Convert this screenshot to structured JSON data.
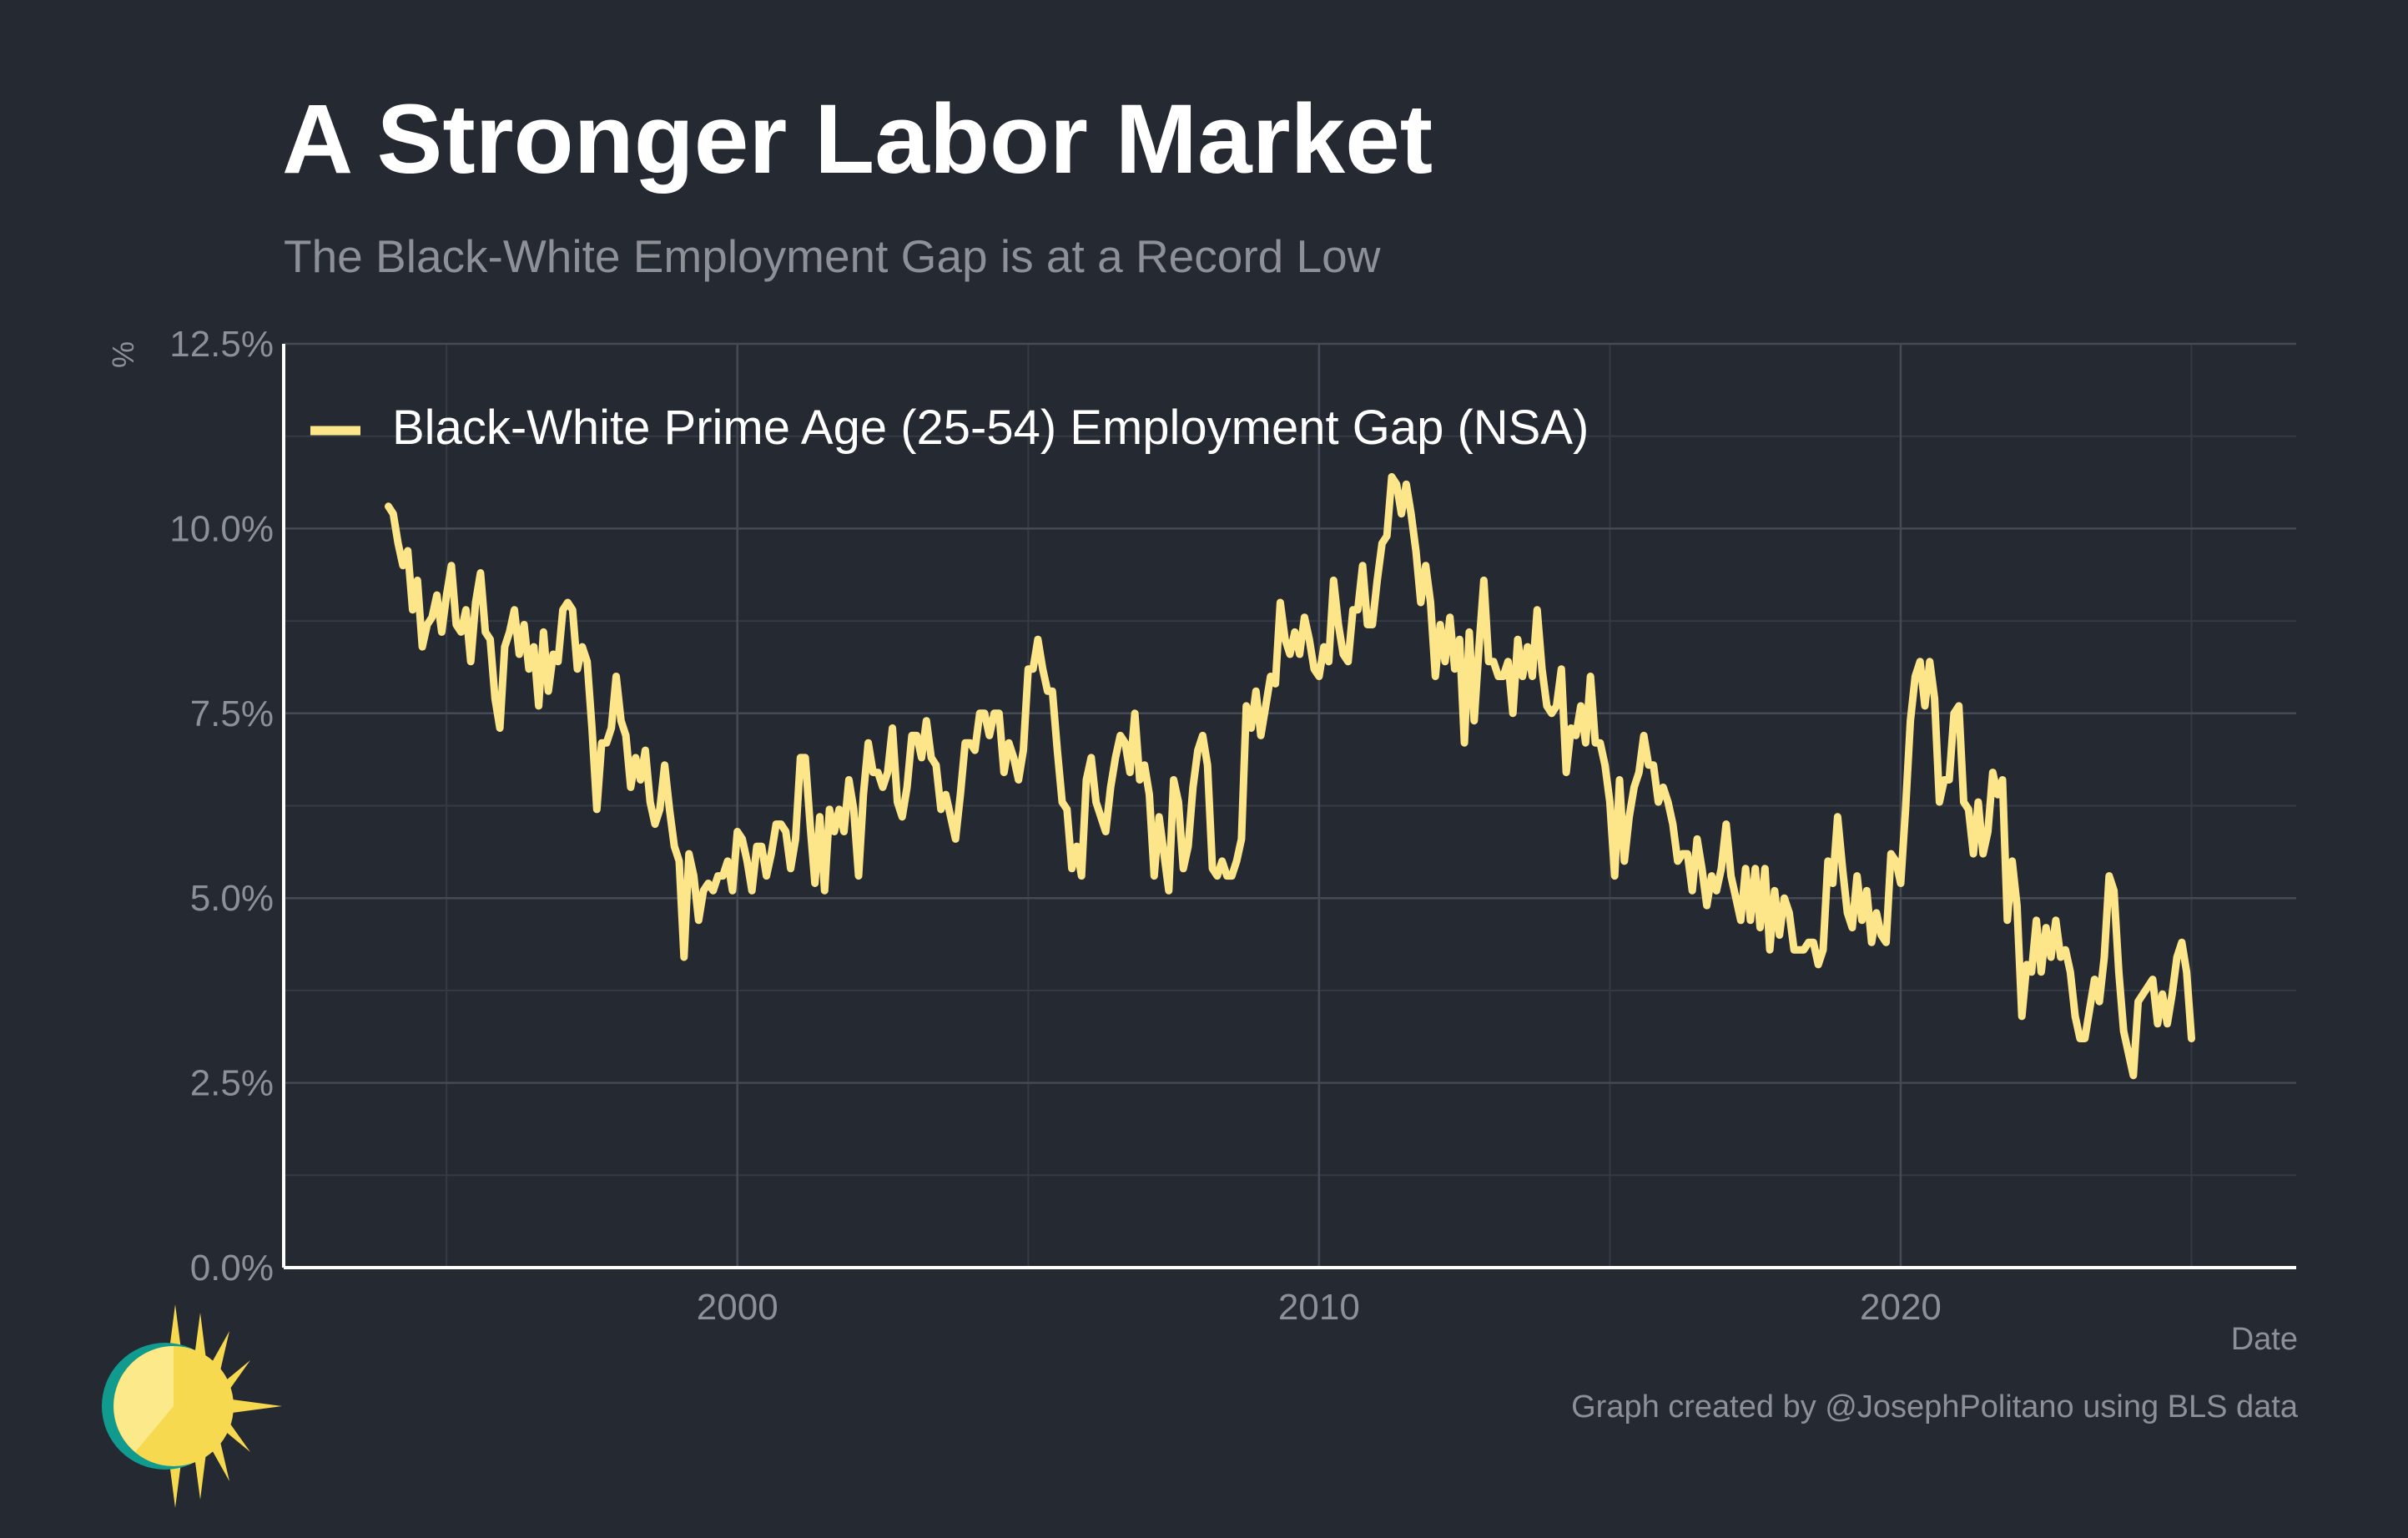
{
  "chart_data": {
    "type": "line",
    "title": "A Stronger Labor Market",
    "subtitle": "The Black-White Employment Gap is at a Record Low",
    "xlabel": "Date",
    "ylabel": "%",
    "caption": "Graph created by @JosephPolitano using BLS data",
    "legend_position": "top-left",
    "grid": true,
    "xlim": [
      1992.2,
      2026.8
    ],
    "ylim": [
      0,
      12.5
    ],
    "x_ticks": [
      2000,
      2010,
      2020
    ],
    "y_ticks": [
      0,
      2.5,
      5,
      7.5,
      10,
      12.5
    ],
    "y_tick_labels": [
      "0.0%",
      "2.5%",
      "5.0%",
      "7.5%",
      "10.0%",
      "12.5%"
    ],
    "series": [
      {
        "name": "Black-White Prime Age (25-54) Employment Gap (NSA)",
        "color": "#fde68a",
        "x_start": 1994.0,
        "x_step_months": 1,
        "values": [
          10.3,
          10.2,
          9.8,
          9.5,
          9.7,
          8.9,
          9.3,
          8.4,
          8.7,
          8.8,
          9.1,
          8.6,
          9.1,
          9.5,
          8.7,
          8.6,
          8.9,
          8.2,
          9.0,
          9.4,
          8.6,
          8.5,
          7.7,
          7.3,
          8.4,
          8.6,
          8.9,
          8.3,
          8.7,
          8.1,
          8.4,
          7.6,
          8.6,
          7.8,
          8.3,
          8.2,
          8.9,
          9.0,
          8.9,
          8.1,
          8.4,
          8.2,
          7.3,
          6.2,
          7.1,
          7.1,
          7.3,
          8.0,
          7.4,
          7.2,
          6.5,
          6.9,
          6.6,
          7.0,
          6.3,
          6.0,
          6.2,
          6.8,
          6.2,
          5.7,
          5.5,
          4.2,
          5.6,
          5.3,
          4.7,
          5.1,
          5.2,
          5.1,
          5.3,
          5.3,
          5.5,
          5.1,
          5.9,
          5.8,
          5.5,
          5.1,
          5.7,
          5.7,
          5.3,
          5.6,
          6.0,
          6.0,
          5.9,
          5.4,
          5.8,
          6.9,
          6.9,
          6.0,
          5.2,
          6.1,
          5.1,
          6.2,
          5.9,
          6.2,
          5.9,
          6.6,
          6.2,
          5.3,
          6.4,
          7.1,
          6.7,
          6.7,
          6.5,
          6.7,
          7.3,
          6.3,
          6.1,
          6.5,
          7.2,
          7.2,
          6.9,
          7.4,
          6.9,
          6.8,
          6.2,
          6.4,
          6.1,
          5.8,
          6.4,
          7.1,
          7.1,
          7.0,
          7.5,
          7.5,
          7.2,
          7.5,
          7.5,
          6.7,
          7.1,
          6.9,
          6.6,
          7.0,
          8.1,
          8.1,
          8.5,
          8.1,
          7.8,
          7.8,
          7.0,
          6.3,
          6.2,
          5.4,
          5.7,
          5.3,
          6.6,
          6.9,
          6.3,
          6.1,
          5.9,
          6.5,
          6.9,
          7.2,
          7.1,
          6.7,
          7.5,
          6.6,
          6.8,
          6.4,
          5.3,
          6.1,
          5.6,
          5.1,
          6.6,
          6.3,
          5.4,
          5.7,
          6.5,
          7.0,
          7.2,
          6.8,
          5.4,
          5.3,
          5.5,
          5.3,
          5.3,
          5.5,
          5.8,
          7.6,
          7.3,
          7.8,
          7.2,
          7.6,
          8.0,
          7.9,
          9.0,
          8.5,
          8.3,
          8.6,
          8.3,
          8.8,
          8.5,
          8.1,
          8.0,
          8.4,
          8.2,
          9.3,
          8.7,
          8.3,
          8.2,
          8.9,
          8.9,
          9.5,
          8.7,
          8.7,
          9.3,
          9.8,
          9.9,
          10.7,
          10.6,
          10.2,
          10.6,
          10.2,
          9.7,
          9.0,
          9.5,
          9.0,
          8.0,
          8.7,
          8.2,
          8.8,
          8.1,
          8.5,
          7.1,
          8.6,
          7.4,
          8.4,
          9.3,
          8.2,
          8.2,
          8.0,
          8.0,
          8.2,
          7.5,
          8.5,
          8.0,
          8.4,
          8.0,
          8.9,
          8.1,
          7.6,
          7.5,
          7.6,
          8.1,
          6.7,
          7.3,
          7.2,
          7.6,
          7.1,
          8.0,
          7.1,
          7.1,
          6.8,
          6.3,
          5.3,
          6.6,
          5.5,
          6.1,
          6.5,
          6.7,
          7.2,
          6.8,
          6.8,
          6.3,
          6.5,
          6.3,
          6.0,
          5.5,
          5.6,
          5.6,
          5.1,
          5.8,
          5.4,
          4.9,
          5.3,
          5.1,
          5.4,
          6.0,
          5.3,
          5.0,
          4.7,
          5.4,
          4.7,
          5.4,
          4.6,
          5.4,
          4.3,
          5.1,
          4.5,
          5.0,
          4.8,
          4.3,
          4.3,
          4.3,
          4.4,
          4.4,
          4.1,
          4.3,
          5.5,
          5.2,
          6.1,
          5.4,
          4.8,
          4.6,
          5.3,
          4.7,
          5.1,
          4.4,
          4.8,
          4.5,
          4.4,
          5.6,
          5.5,
          5.2,
          6.2,
          7.4,
          8.0,
          8.2,
          7.6,
          8.2,
          7.7,
          6.3,
          6.6,
          6.6,
          7.5,
          7.6,
          6.3,
          6.2,
          5.6,
          6.3,
          5.6,
          5.9,
          6.7,
          6.4,
          6.6,
          4.7,
          5.5,
          4.9,
          3.4,
          4.1,
          4.0,
          4.7,
          4.0,
          4.6,
          4.2,
          4.7,
          4.2,
          4.3,
          4.0,
          3.4,
          3.1,
          3.1,
          3.5,
          3.9,
          3.6,
          4.2,
          5.3,
          5.1,
          4.0,
          3.2,
          2.9,
          2.6,
          3.6,
          3.7,
          3.8,
          3.9,
          3.3,
          3.7,
          3.3,
          3.7,
          4.2,
          4.4,
          4.0,
          3.1
        ]
      }
    ]
  }
}
